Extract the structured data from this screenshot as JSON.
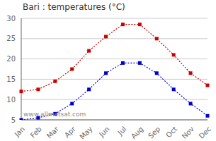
{
  "chart_data": {
    "type": "line",
    "title": "Bari : temperatures (°C)",
    "categories": [
      "Jan",
      "Feb",
      "Mar",
      "Apr",
      "May",
      "Jun",
      "Jul",
      "Aug",
      "Sep",
      "Oct",
      "Nov",
      "Dec"
    ],
    "series": [
      {
        "color": "#cc0000",
        "values": [
          12.0,
          12.5,
          14.5,
          17.5,
          22.0,
          25.5,
          28.5,
          28.5,
          25.0,
          21.0,
          16.5,
          13.5
        ]
      },
      {
        "color": "#0000cc",
        "values": [
          5.0,
          5.5,
          6.5,
          9.0,
          12.5,
          16.5,
          19.0,
          19.0,
          16.5,
          12.5,
          9.0,
          6.0
        ]
      }
    ],
    "ylim": [
      5,
      30
    ],
    "yticks": [
      5,
      10,
      15,
      20,
      25,
      30
    ],
    "grid": true,
    "marker": "square",
    "line_style": "dotted",
    "annotations": [
      "www.allmetsat.com"
    ]
  }
}
